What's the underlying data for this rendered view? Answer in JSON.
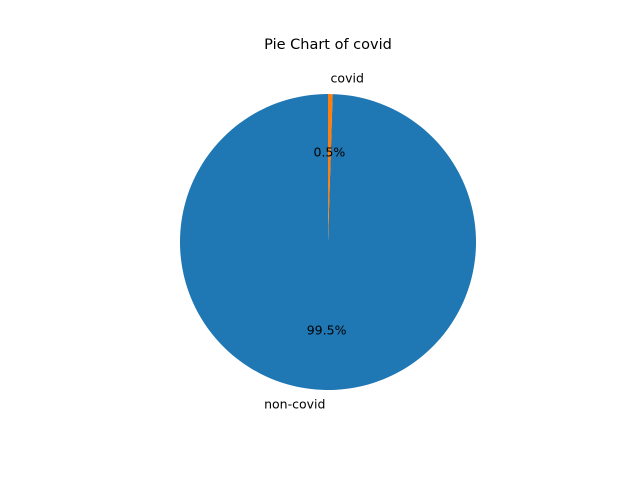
{
  "chart_data": {
    "type": "pie",
    "title": "Pie Chart of covid",
    "slices": [
      {
        "label": "non-covid",
        "value": 99.5,
        "pct_label": "99.5%",
        "color": "#1f77b4"
      },
      {
        "label": "covid",
        "value": 0.5,
        "pct_label": "0.5%",
        "color": "#ff7f0e"
      }
    ],
    "start_angle_deg": 90,
    "direction": "counterclockwise",
    "legend": "none"
  }
}
